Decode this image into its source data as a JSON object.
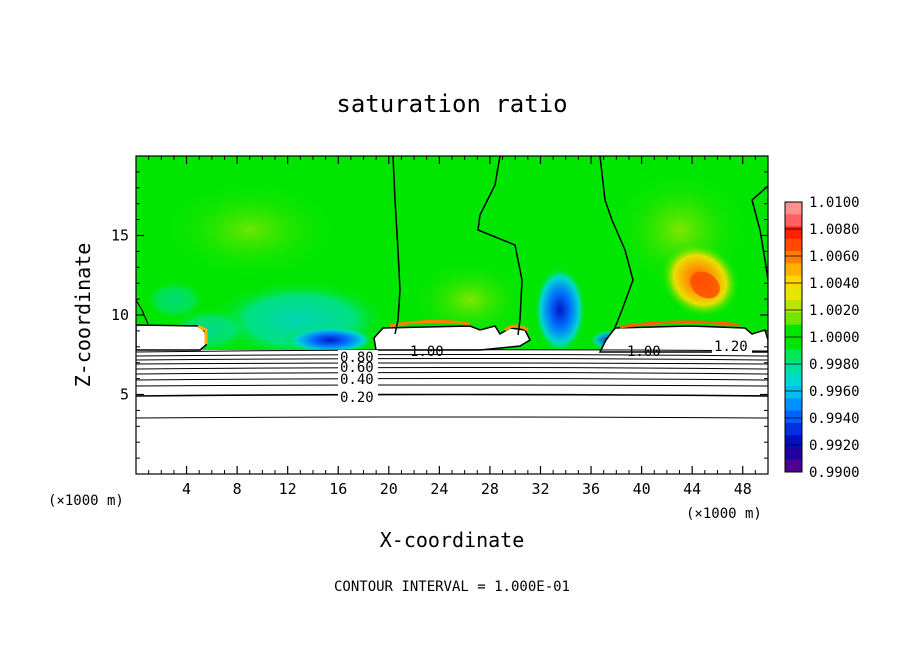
{
  "chart_data": {
    "type": "heatmap",
    "title": "saturation ratio",
    "xlabel": "X-coordinate",
    "ylabel": "Z-coordinate",
    "x_unit_left": "(×1000 m)",
    "x_unit_right": "(×1000 m)",
    "xlim": [
      0,
      50
    ],
    "ylim": [
      0,
      20
    ],
    "x_ticks": [
      "4",
      "8",
      "12",
      "16",
      "20",
      "24",
      "28",
      "32",
      "36",
      "40",
      "44",
      "48"
    ],
    "y_ticks": [
      "5",
      "10",
      "15"
    ],
    "colorbar": {
      "min": 0.99,
      "max": 1.01,
      "labels": [
        "1.0100",
        "1.0080",
        "1.0060",
        "1.0040",
        "1.0020",
        "1.0000",
        "0.9980",
        "0.9960",
        "0.9940",
        "0.9920",
        "0.9900"
      ]
    },
    "contour_labels": [
      "0.20",
      "0.40",
      "0.60",
      "0.80",
      "1.00",
      "1.00",
      "1.20"
    ],
    "footer": "CONTOUR INTERVAL = 1.000E-01",
    "colors": {
      "background_green": "#00e600",
      "yellow_green": "#a8e600",
      "yellow": "#ffd200",
      "orange": "#ff8000",
      "red": "#ff2000",
      "cyan": "#00e0c0",
      "blue": "#0060ff",
      "dark_blue": "#0010c0"
    }
  }
}
